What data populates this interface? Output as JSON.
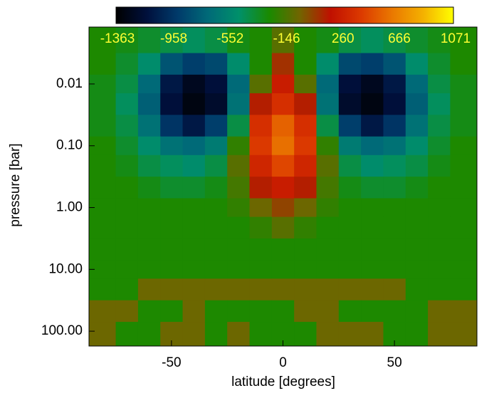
{
  "chart_data": {
    "type": "contour",
    "xlabel": "latitude [degrees]",
    "ylabel": "pressure [bar]",
    "x": [
      -80,
      -70,
      -60,
      -50,
      -40,
      -30,
      -20,
      -10,
      0,
      10,
      20,
      30,
      40,
      50,
      60,
      70,
      80
    ],
    "y": [
      0.002,
      0.005,
      0.01,
      0.02,
      0.05,
      0.1,
      0.2,
      0.5,
      1,
      2,
      5,
      10,
      20,
      50,
      100
    ],
    "z": [
      [
        -250,
        -300,
        -350,
        -400,
        -450,
        -400,
        -300,
        -250,
        -100,
        -250,
        -300,
        -400,
        -450,
        -400,
        -350,
        -300,
        -250
      ],
      [
        -250,
        -350,
        -500,
        -800,
        -900,
        -850,
        -500,
        -250,
        100,
        -250,
        -500,
        -850,
        -900,
        -800,
        -500,
        -350,
        -250
      ],
      [
        -300,
        -400,
        -700,
        -1100,
        -1250,
        -1150,
        -700,
        -100,
        250,
        -100,
        -700,
        -1150,
        -1250,
        -1100,
        -700,
        -400,
        -300
      ],
      [
        -300,
        -450,
        -750,
        -1150,
        -1300,
        -1200,
        -650,
        150,
        350,
        150,
        -650,
        -1200,
        -1300,
        -1150,
        -750,
        -450,
        -300
      ],
      [
        -300,
        -400,
        -650,
        -950,
        -1100,
        -900,
        -400,
        350,
        550,
        350,
        -400,
        -900,
        -1100,
        -950,
        -650,
        -400,
        -300
      ],
      [
        -250,
        -350,
        -500,
        -650,
        -700,
        -600,
        -200,
        400,
        600,
        400,
        -200,
        -600,
        -700,
        -650,
        -500,
        -350,
        -250
      ],
      [
        -250,
        -300,
        -400,
        -450,
        -500,
        -400,
        -100,
        300,
        450,
        300,
        -100,
        -400,
        -500,
        -450,
        -400,
        -300,
        -250
      ],
      [
        -250,
        -250,
        -300,
        -350,
        -350,
        -300,
        -150,
        150,
        250,
        150,
        -150,
        -300,
        -350,
        -350,
        -300,
        -250,
        -250
      ],
      [
        -250,
        -250,
        -250,
        -250,
        -250,
        -250,
        -200,
        -50,
        50,
        -50,
        -200,
        -250,
        -250,
        -250,
        -250,
        -250,
        -250
      ],
      [
        -250,
        -250,
        -250,
        -250,
        -250,
        -250,
        -250,
        -200,
        -100,
        -200,
        -250,
        -250,
        -250,
        -250,
        -250,
        -250,
        -250
      ],
      [
        -250,
        -250,
        -250,
        -250,
        -250,
        -250,
        -250,
        -250,
        -250,
        -250,
        -250,
        -250,
        -250,
        -250,
        -250,
        -250,
        -250
      ],
      [
        -250,
        -250,
        -250,
        -250,
        -250,
        -250,
        -250,
        -250,
        -250,
        -250,
        -250,
        -250,
        -250,
        -250,
        -250,
        -250,
        -250
      ],
      [
        -250,
        -250,
        -50,
        -50,
        -50,
        -50,
        -50,
        -50,
        -50,
        -50,
        -50,
        -50,
        -50,
        -50,
        -250,
        -250,
        -250
      ],
      [
        -50,
        -50,
        -250,
        -250,
        -50,
        -250,
        -250,
        -250,
        -250,
        -50,
        -50,
        -250,
        -250,
        -250,
        -250,
        -50,
        -50
      ],
      [
        -50,
        -250,
        -250,
        -50,
        -50,
        -250,
        -50,
        -250,
        -250,
        -250,
        -50,
        -50,
        -50,
        -250,
        -250,
        -50,
        -50
      ]
    ],
    "xlim": [
      -87,
      87
    ],
    "ylim": [
      0.0012,
      174
    ],
    "ylog": true,
    "yinverted": true,
    "xticks": [
      -50,
      0,
      50
    ],
    "yticks": [
      0.01,
      {
        "value": 0.1,
        "label": "0.10"
      },
      {
        "value": 1,
        "label": "1.00"
      },
      {
        "value": 10,
        "label": "10.00"
      },
      {
        "value": 100,
        "label": "100.00"
      }
    ],
    "zlim": [
      -1363,
      1071
    ],
    "zticks": [
      -1363,
      -958,
      -552,
      -146,
      260,
      666,
      1071
    ],
    "colormap": [
      "#000000",
      "#00103c",
      "#003a6a",
      "#006a78",
      "#00906a",
      "#1a8a00",
      "#726400",
      "#c01000",
      "#dc3a00",
      "#ea7800",
      "#f4b000",
      "#ffff00"
    ],
    "ztick_color": "#ffff33"
  }
}
